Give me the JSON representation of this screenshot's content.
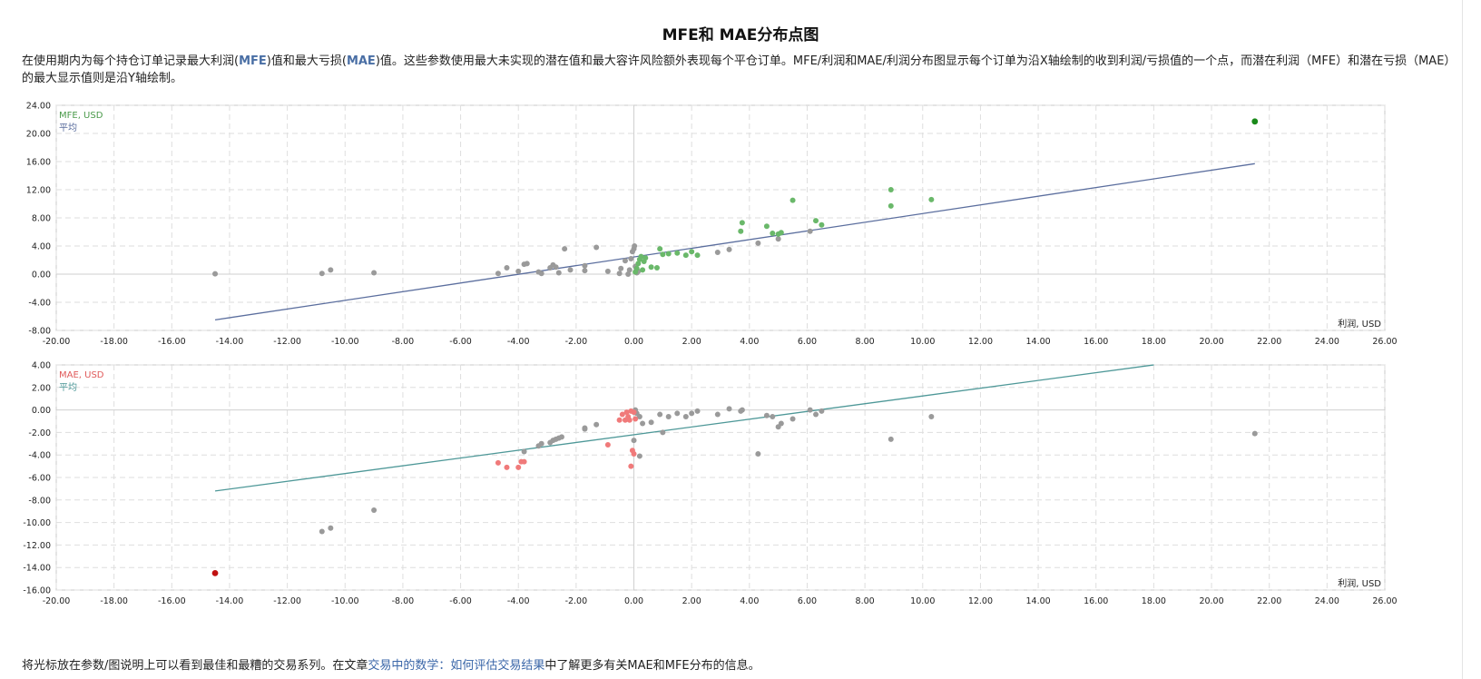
{
  "page": {
    "title": "MFE和 MAE分布点图",
    "description_prefix": "在使用期内为每个持仓订单记录最大利润(",
    "mfe_term": "MFE",
    "description_mid": ")值和最大亏损(",
    "mae_term": "MAE",
    "description_suffix": ")值。这些参数使用最大未实现的潜在值和最大容许风险额外表现每个平仓订单。MFE/利润和MAE/利润分布图显示每个订单为沿X轴绘制的收到利润/亏损值的一个点，而潜在利润（MFE）和潜在亏损（MAE）的最大显示值则是沿Y轴绘制。",
    "footer_prefix": "将光标放在参数/图说明上可以看到最佳和最糟的交易系列。在文章",
    "footer_link": "交易中的数学：如何评估交易结果",
    "footer_suffix": "中了解更多有关MAE和MFE分布的信息。"
  },
  "chart_data": [
    {
      "type": "scatter",
      "legend": [
        "MFE, USD",
        "平均"
      ],
      "xlabel": "利润, USD",
      "xlim": [
        -20,
        26
      ],
      "ylim": [
        -8,
        24
      ],
      "xticks": [
        "-20.00",
        "-18.00",
        "-16.00",
        "-14.00",
        "-12.00",
        "-10.00",
        "-8.00",
        "-6.00",
        "-4.00",
        "-2.00",
        "0.00",
        "2.00",
        "4.00",
        "6.00",
        "8.00",
        "10.00",
        "12.00",
        "14.00",
        "16.00",
        "18.00",
        "20.00",
        "22.00",
        "24.00",
        "26.00"
      ],
      "yticks": [
        "24.00",
        "20.00",
        "16.00",
        "12.00",
        "8.00",
        "4.00",
        "0.00",
        "-4.00",
        "-8.00"
      ],
      "colors": {
        "profit": "#6ab86a",
        "loss": "#9a9a9a",
        "best": "#1a8a1a",
        "avg": "#5b6e9e",
        "legend_series": "#4a9a4a",
        "legend_avg": "#5b6e9e"
      },
      "avg_line": {
        "x": [
          -14.5,
          21.5
        ],
        "y": [
          -6.5,
          15.7
        ]
      },
      "best": [
        21.5,
        21.7
      ],
      "profit_points": [
        [
          0.05,
          0.3
        ],
        [
          0.1,
          0.8
        ],
        [
          0.15,
          1.5
        ],
        [
          0.2,
          2.1
        ],
        [
          0.25,
          2.5
        ],
        [
          0.3,
          0.6
        ],
        [
          0.35,
          1.8
        ],
        [
          0.4,
          2.3
        ],
        [
          0.6,
          1.0
        ],
        [
          0.8,
          0.9
        ],
        [
          0.9,
          3.6
        ],
        [
          1.0,
          2.8
        ],
        [
          1.2,
          2.9
        ],
        [
          1.5,
          3.0
        ],
        [
          1.8,
          2.7
        ],
        [
          2.0,
          3.2
        ],
        [
          2.2,
          2.7
        ],
        [
          3.7,
          6.1
        ],
        [
          3.75,
          7.3
        ],
        [
          4.6,
          6.8
        ],
        [
          4.8,
          5.8
        ],
        [
          5.0,
          5.7
        ],
        [
          5.1,
          5.9
        ],
        [
          5.5,
          10.5
        ],
        [
          6.3,
          7.6
        ],
        [
          6.5,
          7.0
        ],
        [
          8.9,
          12.0
        ],
        [
          8.9,
          9.7
        ],
        [
          10.3,
          10.6
        ]
      ],
      "loss_points": [
        [
          -14.5,
          0.05
        ],
        [
          -10.8,
          0.1
        ],
        [
          -10.5,
          0.6
        ],
        [
          -9.0,
          0.2
        ],
        [
          -4.7,
          0.1
        ],
        [
          -4.4,
          0.9
        ],
        [
          -4.0,
          0.4
        ],
        [
          -3.8,
          1.4
        ],
        [
          -3.7,
          1.5
        ],
        [
          -3.3,
          0.3
        ],
        [
          -3.2,
          0.1
        ],
        [
          -2.9,
          0.9
        ],
        [
          -2.8,
          1.3
        ],
        [
          -2.7,
          1.0
        ],
        [
          -2.6,
          0.2
        ],
        [
          -2.4,
          3.6
        ],
        [
          -2.2,
          0.6
        ],
        [
          -1.7,
          0.5
        ],
        [
          -1.7,
          1.2
        ],
        [
          -1.3,
          3.8
        ],
        [
          -0.9,
          0.4
        ],
        [
          -0.5,
          0.1
        ],
        [
          -0.45,
          0.8
        ],
        [
          -0.3,
          1.9
        ],
        [
          -0.2,
          0.0
        ],
        [
          -0.15,
          0.6
        ],
        [
          -0.1,
          2.2
        ],
        [
          -0.05,
          3.2
        ],
        [
          0.0,
          3.6
        ],
        [
          0.02,
          4.0
        ],
        [
          0.05,
          1.1
        ],
        [
          0.1,
          0.2
        ],
        [
          0.15,
          0.4
        ],
        [
          2.9,
          3.1
        ],
        [
          3.3,
          3.5
        ],
        [
          4.3,
          4.4
        ],
        [
          5.0,
          5.0
        ],
        [
          6.1,
          6.1
        ]
      ]
    },
    {
      "type": "scatter",
      "legend": [
        "MAE, USD",
        "平均"
      ],
      "xlabel": "利润, USD",
      "xlim": [
        -20,
        26
      ],
      "ylim": [
        -16,
        4
      ],
      "xticks": [
        "-20.00",
        "-18.00",
        "-16.00",
        "-14.00",
        "-12.00",
        "-10.00",
        "-8.00",
        "-6.00",
        "-4.00",
        "-2.00",
        "0.00",
        "2.00",
        "4.00",
        "6.00",
        "8.00",
        "10.00",
        "12.00",
        "14.00",
        "16.00",
        "18.00",
        "20.00",
        "22.00",
        "24.00",
        "26.00"
      ],
      "yticks": [
        "4.00",
        "2.00",
        "0.00",
        "-2.00",
        "-4.00",
        "-6.00",
        "-8.00",
        "-10.00",
        "-12.00",
        "-14.00",
        "-16.00"
      ],
      "colors": {
        "loss": "#f07a7a",
        "neutral": "#9a9a9a",
        "worst": "#c01010",
        "avg": "#4e9898",
        "legend_series": "#e05a5a",
        "legend_avg": "#4e9898"
      },
      "avg_line": {
        "x": [
          -14.5,
          18.0
        ],
        "y": [
          -7.2,
          4.0
        ]
      },
      "worst": [
        -14.5,
        -14.5
      ],
      "loss_points": [
        [
          -4.7,
          -4.7
        ],
        [
          -4.4,
          -5.1
        ],
        [
          -4.0,
          -5.1
        ],
        [
          -3.8,
          -4.6
        ],
        [
          -3.9,
          -4.6
        ],
        [
          -0.9,
          -3.1
        ],
        [
          -0.5,
          -0.9
        ],
        [
          -0.4,
          -0.4
        ],
        [
          -0.3,
          -0.9
        ],
        [
          -0.25,
          -0.2
        ],
        [
          -0.2,
          -0.6
        ],
        [
          -0.15,
          -0.9
        ],
        [
          -0.1,
          -5.0
        ],
        [
          -0.05,
          -3.6
        ],
        [
          0.0,
          -3.9
        ],
        [
          0.05,
          -0.8
        ],
        [
          -0.1,
          -0.1
        ],
        [
          0.0,
          -0.2
        ]
      ],
      "neutral_points": [
        [
          -10.8,
          -10.8
        ],
        [
          -10.5,
          -10.5
        ],
        [
          -9.0,
          -8.9
        ],
        [
          -3.8,
          -3.7
        ],
        [
          -3.3,
          -3.2
        ],
        [
          -3.2,
          -3.0
        ],
        [
          -2.9,
          -2.9
        ],
        [
          -2.8,
          -2.7
        ],
        [
          -2.7,
          -2.6
        ],
        [
          -2.6,
          -2.5
        ],
        [
          -2.5,
          -2.4
        ],
        [
          -1.7,
          -1.6
        ],
        [
          -1.7,
          -1.7
        ],
        [
          -1.3,
          -1.3
        ],
        [
          0.05,
          0.0
        ],
        [
          0.1,
          -0.3
        ],
        [
          0.2,
          -0.6
        ],
        [
          0.2,
          -4.1
        ],
        [
          0.0,
          -2.7
        ],
        [
          0.3,
          -1.2
        ],
        [
          0.6,
          -1.1
        ],
        [
          0.9,
          -0.4
        ],
        [
          1.0,
          -2.0
        ],
        [
          1.2,
          -0.6
        ],
        [
          1.5,
          -0.3
        ],
        [
          1.8,
          -0.6
        ],
        [
          2.0,
          -0.3
        ],
        [
          2.2,
          -0.1
        ],
        [
          2.9,
          -0.4
        ],
        [
          3.3,
          0.1
        ],
        [
          3.7,
          -0.1
        ],
        [
          3.75,
          0.0
        ],
        [
          4.3,
          -3.9
        ],
        [
          4.6,
          -0.5
        ],
        [
          4.8,
          -0.6
        ],
        [
          5.0,
          -1.5
        ],
        [
          5.1,
          -1.2
        ],
        [
          5.5,
          -0.8
        ],
        [
          6.1,
          0.0
        ],
        [
          6.3,
          -0.4
        ],
        [
          6.5,
          -0.1
        ],
        [
          8.9,
          -2.6
        ],
        [
          10.3,
          -0.6
        ],
        [
          21.5,
          -2.1
        ]
      ]
    }
  ]
}
